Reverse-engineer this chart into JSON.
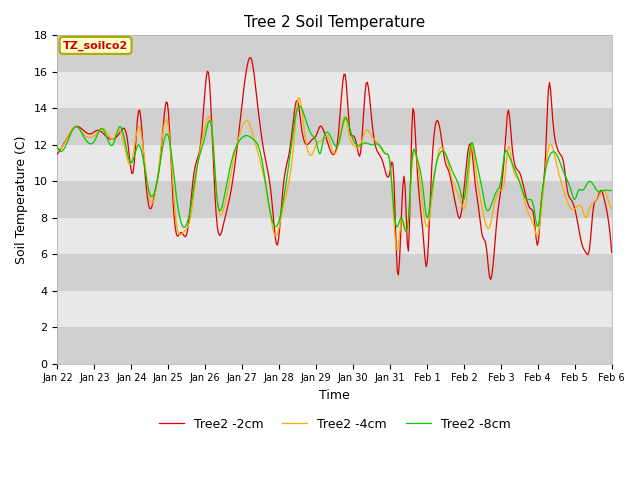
{
  "title": "Tree 2 Soil Temperature",
  "xlabel": "Time",
  "ylabel": "Soil Temperature (C)",
  "ylim": [
    0,
    18
  ],
  "yticks": [
    0,
    2,
    4,
    6,
    8,
    10,
    12,
    14,
    16,
    18
  ],
  "annotation_text": "TZ_soilco2",
  "annotation_color": "#cc0000",
  "annotation_bg": "#ffffcc",
  "annotation_border": "#aaaa00",
  "line_red": "#dd0000",
  "line_orange": "#ffaa00",
  "line_green": "#00cc00",
  "legend_labels": [
    "Tree2 -2cm",
    "Tree2 -4cm",
    "Tree2 -8cm"
  ],
  "plot_bg_light": "#e8e8e8",
  "plot_bg_dark": "#d0d0d0",
  "x_labels": [
    "Jan 22",
    "Jan 23",
    "Jan 24",
    "Jan 25",
    "Jan 26",
    "Jan 27",
    "Jan 28",
    "Jan 29",
    "Jan 30",
    "Jan 31",
    "Feb 1",
    "Feb 2",
    "Feb 3",
    "Feb 4",
    "Feb 5",
    "Feb 6"
  ],
  "figsize": [
    6.4,
    4.8
  ],
  "dpi": 100
}
